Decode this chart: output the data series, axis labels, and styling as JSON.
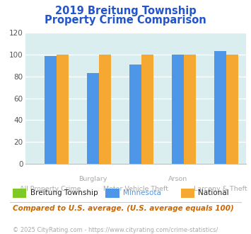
{
  "title_line1": "2019 Breitung Township",
  "title_line2": "Property Crime Comparison",
  "categories": [
    "All Property Crime",
    "Burglary",
    "Motor Vehicle Theft",
    "Arson",
    "Larceny & Theft"
  ],
  "series": {
    "Breitung Township": [
      0,
      0,
      0,
      0,
      0
    ],
    "Minnesota": [
      99,
      83,
      91,
      100,
      103
    ],
    "National": [
      100,
      100,
      100,
      100,
      100
    ]
  },
  "colors": {
    "Breitung Township": "#7ec926",
    "Minnesota": "#4d96e8",
    "National": "#f5a832"
  },
  "ylim": [
    0,
    120
  ],
  "yticks": [
    0,
    20,
    40,
    60,
    80,
    100,
    120
  ],
  "bg_color": "#daeef0",
  "title_color": "#2255cc",
  "axis_label_color": "#aaaaaa",
  "legend_bt_color": "#222222",
  "legend_mn_color": "#4d96e8",
  "legend_nat_color": "#222222",
  "footnote1": "Compared to U.S. average. (U.S. average equals 100)",
  "footnote2": "© 2025 CityRating.com - https://www.cityrating.com/crime-statistics/",
  "footnote1_color": "#cc6600",
  "footnote2_color": "#aaaaaa",
  "top_xlabels": [
    [
      1,
      "Burglary"
    ],
    [
      3,
      "Arson"
    ]
  ],
  "bot_xlabels": [
    [
      0,
      "All Property Crime"
    ],
    [
      2,
      "Motor Vehicle Theft"
    ],
    [
      4,
      "Larceny & Theft"
    ]
  ]
}
